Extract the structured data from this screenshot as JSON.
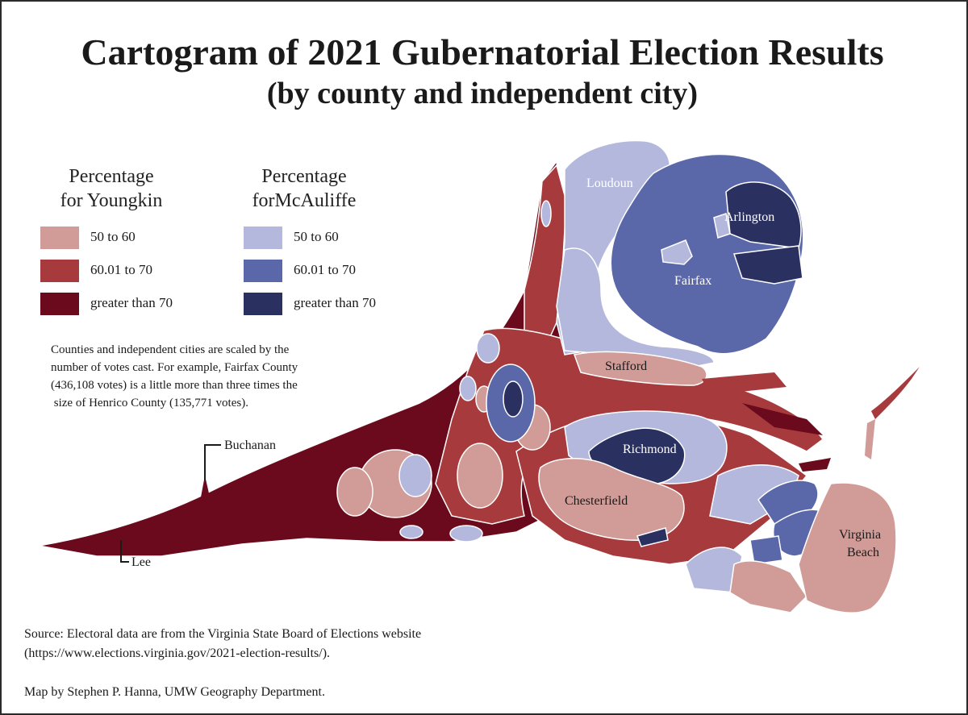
{
  "title": {
    "line1": "Cartogram of 2021 Gubernatorial Election Results",
    "line2": "(by county and independent city)"
  },
  "legend": {
    "youngkin": {
      "heading_line1": "Percentage",
      "heading_line2": "for Youngkin",
      "classes": [
        {
          "label": "50 to 60",
          "color": "#d19c97"
        },
        {
          "label": "60.01 to 70",
          "color": "#a63a3c"
        },
        {
          "label": "greater than 70",
          "color": "#6b0a1c"
        }
      ]
    },
    "mcauliffe": {
      "heading_line1": "Percentage",
      "heading_line2": "forMcAuliffe",
      "classes": [
        {
          "label": "50 to 60",
          "color": "#b4b8dc"
        },
        {
          "label": "60.01 to 70",
          "color": "#5a67a8"
        },
        {
          "label": "greater than 70",
          "color": "#2a3060"
        }
      ]
    }
  },
  "note": {
    "line1": "Counties and independent cities are scaled by the",
    "line2": "number of votes cast. For example, Fairfax County",
    "line3": "(436,108 votes) is a little more than three times the",
    "line4": " size of Henrico County (135,771 votes)."
  },
  "map_labels": {
    "loudoun": "Loudoun",
    "arlington": "Arlington",
    "fairfax": "Fairfax",
    "stafford": "Stafford",
    "richmond": "Richmond",
    "chesterfield": "Chesterfield",
    "virginia_beach_1": "Virginia",
    "virginia_beach_2": "Beach",
    "buchanan": "Buchanan",
    "lee": "Lee"
  },
  "footer": {
    "source_line1": "Source:  Electoral data are from the Virginia State Board of Elections  website",
    "source_line2": "(https://www.elections.virginia.gov/2021-election-results/).",
    "credit": "Map by Stephen P. Hanna, UMW Geography Department."
  }
}
